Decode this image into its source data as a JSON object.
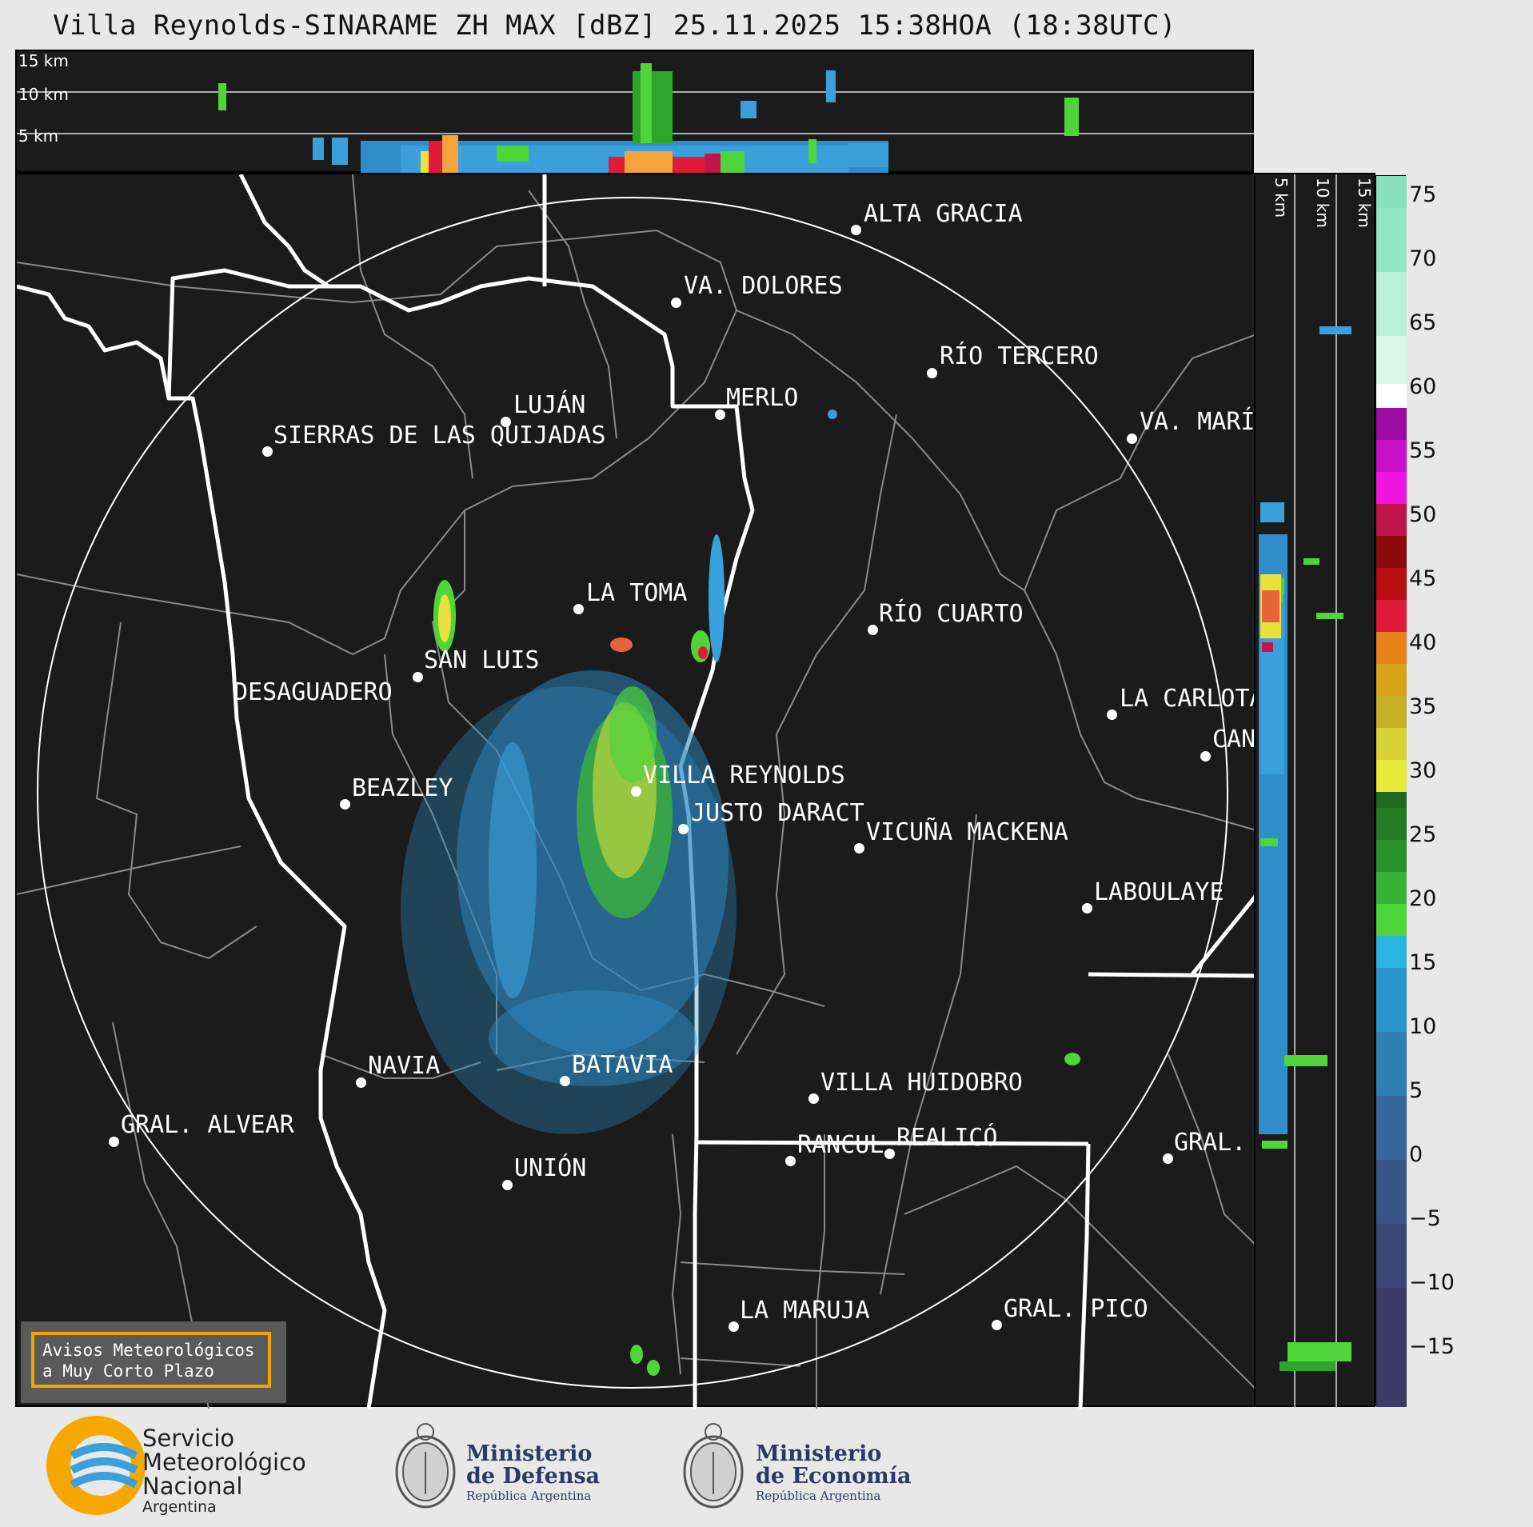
{
  "header": {
    "title": "Villa Reynolds-SINARAME ZH MAX [dBZ] 25.11.2025 15:38HOA (18:38UTC)"
  },
  "top_panel": {
    "height_labels": [
      "15 km",
      "10 km",
      "5 km"
    ]
  },
  "side_panel": {
    "height_labels": [
      "5 km",
      "10 km",
      "15 km"
    ]
  },
  "colorbar": {
    "ticks": [
      "75",
      "70",
      "65",
      "60",
      "55",
      "50",
      "45",
      "40",
      "35",
      "30",
      "25",
      "20",
      "15",
      "10",
      "5",
      "0",
      "−5",
      "−10",
      "−15"
    ]
  },
  "cities": [
    {
      "label": "ALTA GRACIA"
    },
    {
      "label": "VA. DOLORES"
    },
    {
      "label": "RÍO TERCERO"
    },
    {
      "label": "LUJÁN"
    },
    {
      "label": "MERLO"
    },
    {
      "label": "VA. MARÍ"
    },
    {
      "label": "SIERRAS DE LAS QUIJADAS"
    },
    {
      "label": "LA TOMA"
    },
    {
      "label": "RÍO CUARTO"
    },
    {
      "label": "SAN LUIS"
    },
    {
      "label": "DESAGUADERO"
    },
    {
      "label": "LA CARLOTA"
    },
    {
      "label": "CAN"
    },
    {
      "label": "VILLA REYNOLDS"
    },
    {
      "label": "BEAZLEY"
    },
    {
      "label": "JUSTO DARACT"
    },
    {
      "label": "VICUÑA MACKENA"
    },
    {
      "label": "LABOULAYE"
    },
    {
      "label": "NAVIA"
    },
    {
      "label": "BATAVIA"
    },
    {
      "label": "VILLA HUIDOBRO"
    },
    {
      "label": "GRAL. ALVEAR"
    },
    {
      "label": "RANCUL"
    },
    {
      "label": "REALICÓ"
    },
    {
      "label": "GRAL."
    },
    {
      "label": "UNIÓN"
    },
    {
      "label": "LA MARUJA"
    },
    {
      "label": "GRAL. PICO"
    }
  ],
  "notice": {
    "line1": "Avisos Meteorológicos",
    "line2": "a Muy Corto Plazo"
  },
  "footer": {
    "smn_line1": "Servicio",
    "smn_line2": "Meteorológico",
    "smn_line3": "Nacional",
    "smn_line4": "Argentina",
    "defensa_line1": "Ministerio",
    "defensa_line2": "de Defensa",
    "defensa_line3": "República Argentina",
    "economia_line1": "Ministerio",
    "economia_line2": "de Economía",
    "economia_line3": "República Argentina"
  },
  "colors": {
    "background": "#1b1b1b",
    "smn_yellow": "#f7a800",
    "smn_blue": "#3aa0dc",
    "ministry_blue": "#2b3a64"
  }
}
